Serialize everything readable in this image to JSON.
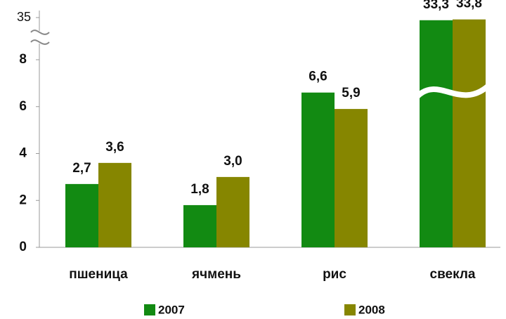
{
  "chart_data": {
    "type": "bar",
    "categories": [
      "пшеница",
      "ячмень",
      "рис",
      "свекла"
    ],
    "series": [
      {
        "name": "2007",
        "color": "#128a12",
        "values": [
          2.7,
          1.8,
          6.6,
          33.3
        ],
        "value_labels": [
          "2,7",
          "1,8",
          "6,6",
          "33,3"
        ]
      },
      {
        "name": "2008",
        "color": "#868600",
        "values": [
          3.6,
          3.0,
          5.9,
          33.8
        ],
        "value_labels": [
          "3,6",
          "3,0",
          "5,9",
          "33,8"
        ]
      }
    ],
    "ylim": [
      0,
      35
    ],
    "yticks": [
      0,
      2,
      4,
      6,
      8,
      35
    ],
    "axis_break": true,
    "legend": "bottom"
  }
}
